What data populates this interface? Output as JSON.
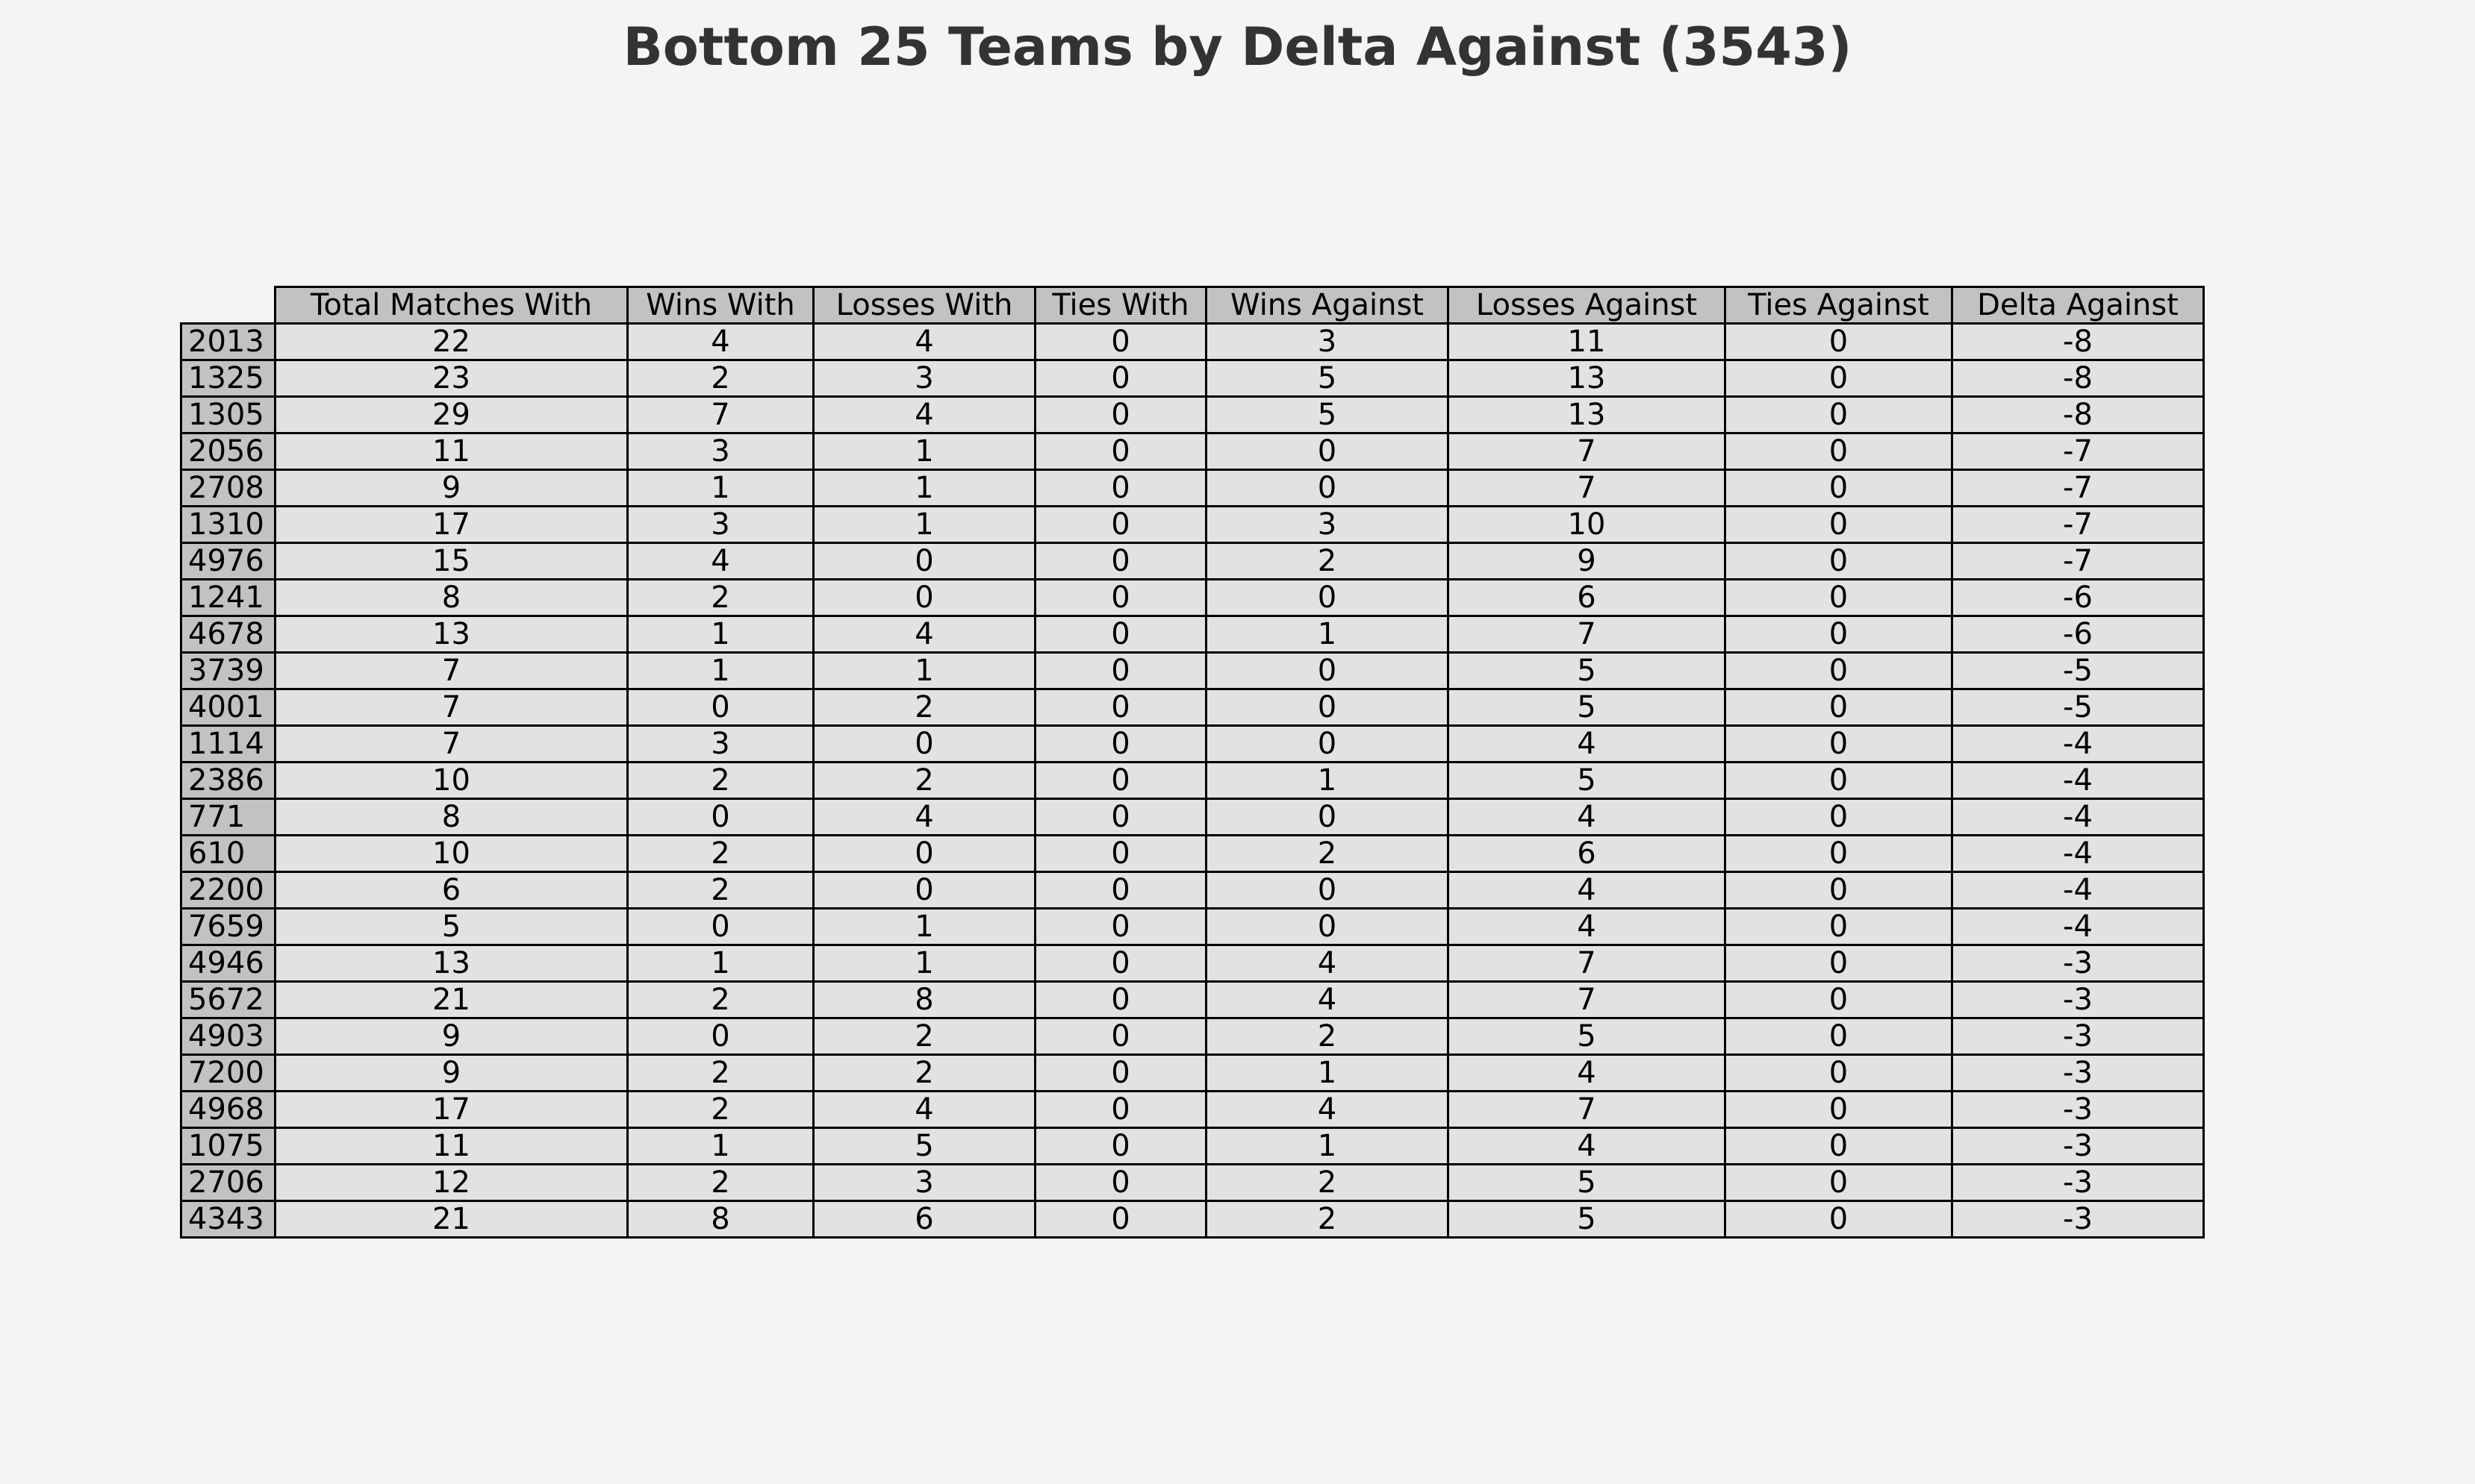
{
  "chart_data": {
    "type": "table",
    "title": "Bottom 25 Teams by Delta Against (3543)",
    "columns": [
      "Total Matches With",
      "Wins With",
      "Losses With",
      "Ties With",
      "Wins Against",
      "Losses Against",
      "Ties Against",
      "Delta Against"
    ],
    "rows": [
      {
        "team": "2013",
        "values": [
          22,
          4,
          4,
          0,
          3,
          11,
          0,
          -8
        ]
      },
      {
        "team": "1325",
        "values": [
          23,
          2,
          3,
          0,
          5,
          13,
          0,
          -8
        ]
      },
      {
        "team": "1305",
        "values": [
          29,
          7,
          4,
          0,
          5,
          13,
          0,
          -8
        ]
      },
      {
        "team": "2056",
        "values": [
          11,
          3,
          1,
          0,
          0,
          7,
          0,
          -7
        ]
      },
      {
        "team": "2708",
        "values": [
          9,
          1,
          1,
          0,
          0,
          7,
          0,
          -7
        ]
      },
      {
        "team": "1310",
        "values": [
          17,
          3,
          1,
          0,
          3,
          10,
          0,
          -7
        ]
      },
      {
        "team": "4976",
        "values": [
          15,
          4,
          0,
          0,
          2,
          9,
          0,
          -7
        ]
      },
      {
        "team": "1241",
        "values": [
          8,
          2,
          0,
          0,
          0,
          6,
          0,
          -6
        ]
      },
      {
        "team": "4678",
        "values": [
          13,
          1,
          4,
          0,
          1,
          7,
          0,
          -6
        ]
      },
      {
        "team": "3739",
        "values": [
          7,
          1,
          1,
          0,
          0,
          5,
          0,
          -5
        ]
      },
      {
        "team": "4001",
        "values": [
          7,
          0,
          2,
          0,
          0,
          5,
          0,
          -5
        ]
      },
      {
        "team": "1114",
        "values": [
          7,
          3,
          0,
          0,
          0,
          4,
          0,
          -4
        ]
      },
      {
        "team": "2386",
        "values": [
          10,
          2,
          2,
          0,
          1,
          5,
          0,
          -4
        ]
      },
      {
        "team": "771",
        "values": [
          8,
          0,
          4,
          0,
          0,
          4,
          0,
          -4
        ]
      },
      {
        "team": "610",
        "values": [
          10,
          2,
          0,
          0,
          2,
          6,
          0,
          -4
        ]
      },
      {
        "team": "2200",
        "values": [
          6,
          2,
          0,
          0,
          0,
          4,
          0,
          -4
        ]
      },
      {
        "team": "7659",
        "values": [
          5,
          0,
          1,
          0,
          0,
          4,
          0,
          -4
        ]
      },
      {
        "team": "4946",
        "values": [
          13,
          1,
          1,
          0,
          4,
          7,
          0,
          -3
        ]
      },
      {
        "team": "5672",
        "values": [
          21,
          2,
          8,
          0,
          4,
          7,
          0,
          -3
        ]
      },
      {
        "team": "4903",
        "values": [
          9,
          0,
          2,
          0,
          2,
          5,
          0,
          -3
        ]
      },
      {
        "team": "7200",
        "values": [
          9,
          2,
          2,
          0,
          1,
          4,
          0,
          -3
        ]
      },
      {
        "team": "4968",
        "values": [
          17,
          2,
          4,
          0,
          4,
          7,
          0,
          -3
        ]
      },
      {
        "team": "1075",
        "values": [
          11,
          1,
          5,
          0,
          1,
          4,
          0,
          -3
        ]
      },
      {
        "team": "2706",
        "values": [
          12,
          2,
          3,
          0,
          2,
          5,
          0,
          -3
        ]
      },
      {
        "team": "4343",
        "values": [
          21,
          8,
          6,
          0,
          2,
          5,
          0,
          -3
        ]
      }
    ],
    "colors": {
      "background": "#f4f4f4",
      "header_fill": "#c2c2c2",
      "cell_fill": "#e2e2e2",
      "title": "#333333"
    }
  }
}
